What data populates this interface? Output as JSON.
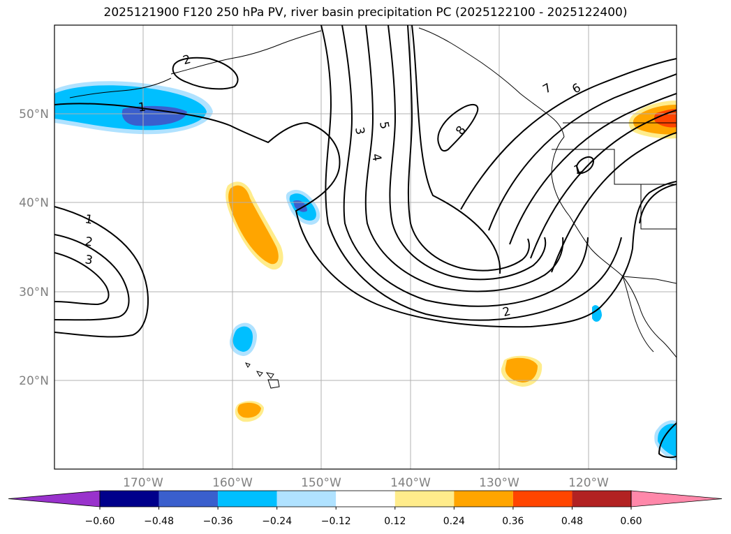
{
  "title": "2025121900 F120 250 hPa PV, river basin precipitation PC (2025122100 - 2025122400)",
  "map": {
    "lon_min": -180,
    "lon_max": -110.2,
    "lat_min": 10.2,
    "lat_max": 60,
    "lon_ticks": [
      {
        "lon": -170,
        "label": "170°W"
      },
      {
        "lon": -160,
        "label": "160°W"
      },
      {
        "lon": -150,
        "label": "150°W"
      },
      {
        "lon": -140,
        "label": "140°W"
      },
      {
        "lon": -130,
        "label": "130°W"
      },
      {
        "lon": -120,
        "label": "120°W"
      }
    ],
    "lat_ticks": [
      {
        "lat": 50,
        "label": "50°N"
      },
      {
        "lat": 40,
        "label": "40°N"
      },
      {
        "lat": 30,
        "label": "30°N"
      },
      {
        "lat": 20,
        "label": "20°N"
      }
    ],
    "grid": true,
    "pv_contour_labels": [
      "1",
      "2",
      "3",
      "4",
      "5",
      "6",
      "7",
      "8",
      "1",
      "2",
      "3",
      "2",
      "1"
    ],
    "colors": {
      "contour": "#000000",
      "grid": "#b0b0b0",
      "tick_label": "#808080"
    }
  },
  "colorbar": {
    "bounds": [
      -0.6,
      -0.48,
      -0.36,
      -0.24,
      -0.12,
      0.12,
      0.24,
      0.36,
      0.48,
      0.6
    ],
    "tick_labels": [
      "−0.60",
      "−0.48",
      "−0.36",
      "−0.24",
      "−0.12",
      "0.12",
      "0.24",
      "0.36",
      "0.48",
      "0.60"
    ],
    "under_color": "#9932cc",
    "over_color": "#ff88aa",
    "colors": [
      "#00008b",
      "#3a5fcd",
      "#00bfff",
      "#b0e2ff",
      "#ffffff",
      "#ffec8b",
      "#ffa500",
      "#ff4500",
      "#b22222"
    ]
  }
}
